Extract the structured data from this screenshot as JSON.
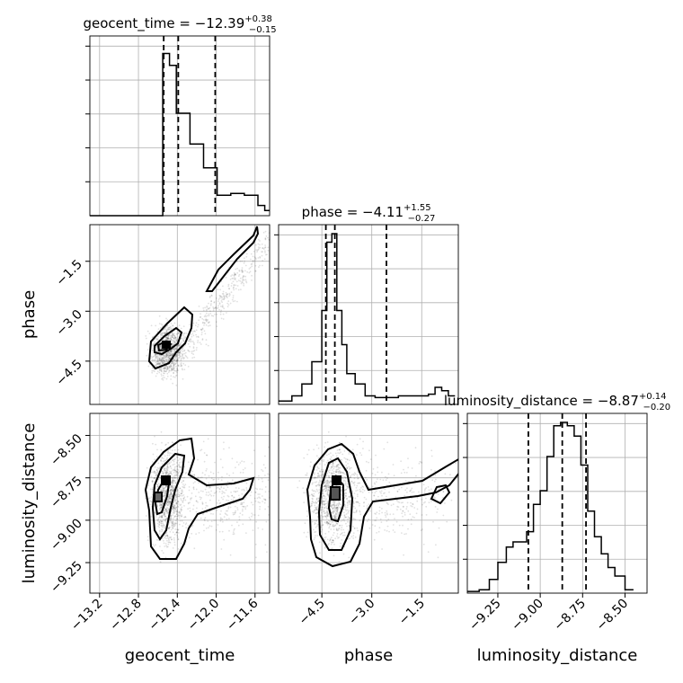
{
  "chart_data": {
    "type": "corner",
    "params": [
      "geocent_time",
      "phase",
      "luminosity_distance"
    ],
    "axis_labels": {
      "geocent_time": "geocent_time",
      "phase": "phase",
      "luminosity_distance": "luminosity_distance"
    },
    "titles": [
      {
        "name": "geocent_time",
        "median": "−12.39",
        "plus": "+0.38",
        "minus": "−0.15"
      },
      {
        "name": "phase",
        "median": "−4.11",
        "plus": "+1.55",
        "minus": "−0.27"
      },
      {
        "name": "luminosity_distance",
        "median": "−8.87",
        "plus": "+0.14",
        "minus": "−0.20"
      }
    ],
    "ranges": {
      "geocent_time": [
        -13.3,
        -11.45
      ],
      "phase": [
        -5.8,
        -0.4
      ],
      "luminosity_distance": [
        -9.43,
        -8.37
      ]
    },
    "ticks": {
      "geocent_time": {
        "values": [
          -13.2,
          -12.8,
          -12.4,
          -12.0,
          -11.6
        ],
        "labels": [
          "−13.2",
          "−12.8",
          "−12.4",
          "−12.0",
          "−11.6"
        ]
      },
      "phase": {
        "values": [
          -4.5,
          -3.0,
          -1.5
        ],
        "labels": [
          "−4.5",
          "−3.0",
          "−1.5"
        ]
      },
      "luminosity_distance": {
        "values": [
          -9.25,
          -9.0,
          -8.75,
          -8.5
        ],
        "labels": [
          "−9.25",
          "−9.00",
          "−8.75",
          "−8.50"
        ]
      }
    },
    "grid": true,
    "quantiles": {
      "geocent_time": [
        -12.54,
        -12.39,
        -12.01
      ],
      "phase": [
        -4.38,
        -4.11,
        -2.56
      ],
      "luminosity_distance": [
        -9.07,
        -8.87,
        -8.73
      ]
    },
    "histograms": {
      "geocent_time": {
        "edges": [
          -13.3,
          -12.55,
          -12.48,
          -12.41,
          -12.34,
          -12.27,
          -12.2,
          -12.13,
          -12.06,
          -11.99,
          -11.92,
          -11.85,
          -11.78,
          -11.71,
          -11.64,
          -11.57,
          -11.5,
          -11.45
        ],
        "counts": [
          0,
          0.95,
          0.88,
          0.6,
          0.6,
          0.42,
          0.42,
          0.28,
          0.28,
          0.12,
          0.12,
          0.13,
          0.13,
          0.12,
          0.12,
          0.06,
          0.03
        ]
      },
      "phase": {
        "edges": [
          -5.8,
          -5.4,
          -5.1,
          -4.8,
          -4.5,
          -4.35,
          -4.2,
          -4.05,
          -3.9,
          -3.75,
          -3.5,
          -3.2,
          -2.9,
          -2.5,
          -2.2,
          -1.9,
          -1.6,
          -1.3,
          -1.1,
          -0.9,
          -0.7,
          -0.5
        ],
        "counts": [
          0.02,
          0.05,
          0.12,
          0.25,
          0.55,
          0.95,
          1.0,
          0.55,
          0.35,
          0.18,
          0.12,
          0.05,
          0.04,
          0.04,
          0.05,
          0.05,
          0.05,
          0.06,
          0.1,
          0.08,
          0.05
        ]
      },
      "luminosity_distance": {
        "edges": [
          -9.43,
          -9.36,
          -9.3,
          -9.25,
          -9.2,
          -9.16,
          -9.12,
          -9.08,
          -9.04,
          -9.0,
          -8.96,
          -8.92,
          -8.88,
          -8.84,
          -8.8,
          -8.76,
          -8.72,
          -8.68,
          -8.64,
          -8.6,
          -8.56,
          -8.5,
          -8.45
        ],
        "counts": [
          0.01,
          0.02,
          0.08,
          0.18,
          0.27,
          0.3,
          0.3,
          0.36,
          0.52,
          0.6,
          0.8,
          0.98,
          1.0,
          0.98,
          0.92,
          0.75,
          0.48,
          0.33,
          0.23,
          0.15,
          0.1,
          0.02
        ]
      }
    }
  }
}
